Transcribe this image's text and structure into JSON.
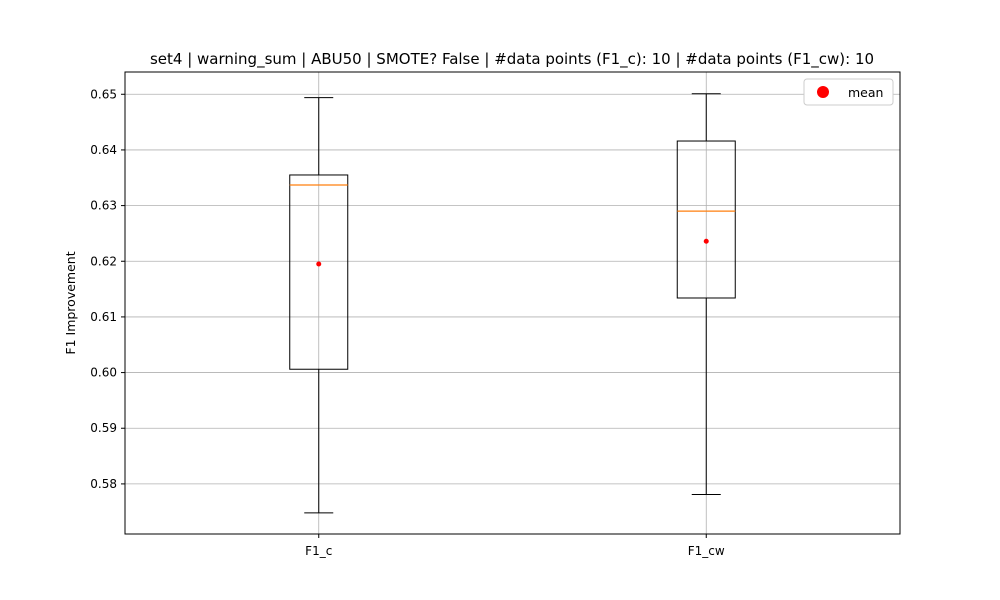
{
  "chart_data": {
    "type": "box",
    "title": "set4 | warning_sum | ABU50 | SMOTE? False | #data points (F1_c): 10 | #data points (F1_cw): 10",
    "xlabel": "",
    "ylabel": "F1 Improvement",
    "ylim": [
      0.571,
      0.654
    ],
    "yticks": [
      "0.58",
      "0.59",
      "0.60",
      "0.61",
      "0.62",
      "0.63",
      "0.64",
      "0.65"
    ],
    "grid": true,
    "legend": {
      "position": "top-right",
      "entries": [
        "mean"
      ]
    },
    "categories": [
      "F1_c",
      "F1_cw"
    ],
    "boxes": [
      {
        "name": "F1_c",
        "whisker_low": 0.5748,
        "q1": 0.6006,
        "median": 0.6337,
        "q3": 0.6355,
        "whisker_high": 0.6494,
        "mean": 0.6195
      },
      {
        "name": "F1_cw",
        "whisker_low": 0.5781,
        "q1": 0.6134,
        "median": 0.629,
        "q3": 0.6416,
        "whisker_high": 0.6501,
        "mean": 0.6236
      }
    ],
    "colors": {
      "box": "#000000",
      "median": "#ff7f0e",
      "mean": "#ff0000",
      "grid": "#b0b0b0"
    }
  }
}
